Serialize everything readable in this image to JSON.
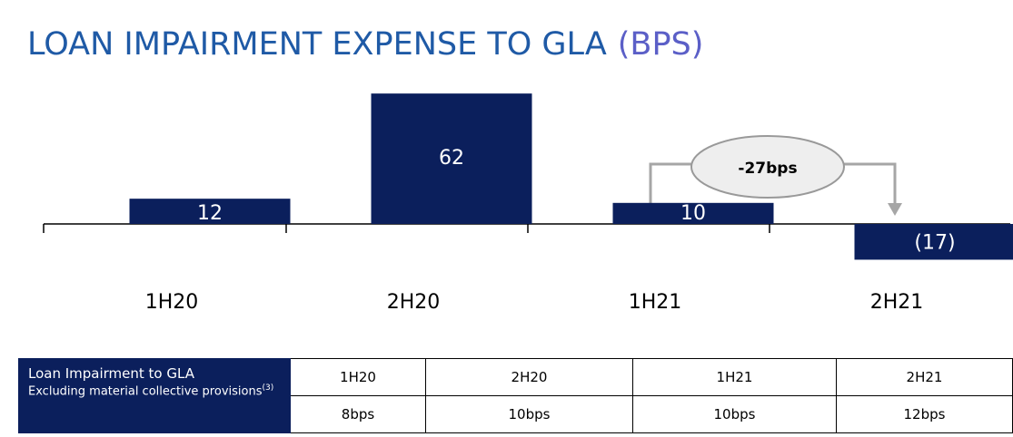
{
  "chart_data": {
    "type": "bar",
    "title": "LOAN IMPAIRMENT EXPENSE TO GLA",
    "title_unit": "(BPS)",
    "categories": [
      "1H20",
      "2H20",
      "1H21",
      "2H21"
    ],
    "values": [
      12,
      62,
      10,
      -17
    ],
    "value_labels": [
      "12",
      "62",
      "10",
      "(17)"
    ],
    "color": "#0b1f5c",
    "annotation": "-27bps"
  },
  "table": {
    "label": "Loan Impairment to GLA",
    "sublabel": "Excluding material collective provisions",
    "sublabel_note": "(3)",
    "columns": [
      "1H20",
      "2H20",
      "1H21",
      "2H21"
    ],
    "values": [
      "8bps",
      "10bps",
      "10bps",
      "12bps"
    ]
  }
}
